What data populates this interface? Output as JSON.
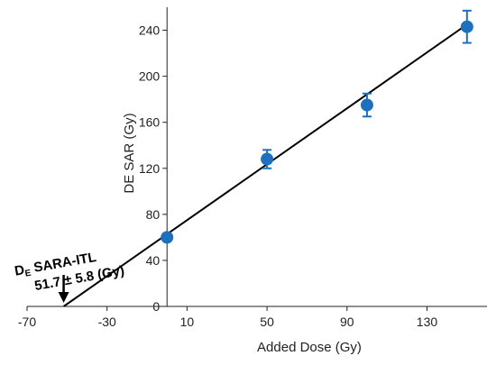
{
  "chart_data": {
    "type": "scatter",
    "title": "",
    "xlabel": "Added Dose (Gy)",
    "ylabel": "DE SAR (Gy)",
    "xlim": [
      -70,
      160
    ],
    "ylim": [
      0,
      260
    ],
    "xticks": [
      -70,
      -30,
      10,
      50,
      90,
      130
    ],
    "yticks": [
      0,
      40,
      80,
      120,
      160,
      200,
      240
    ],
    "grid": false,
    "legend": "none",
    "series": [
      {
        "x": [
          0,
          50,
          100,
          150
        ],
        "y": [
          60,
          128,
          175,
          243
        ],
        "error": [
          0,
          8,
          10,
          14
        ],
        "color": "#1f6fbf"
      }
    ],
    "fit_line": {
      "x": [
        -51.7,
        150
      ],
      "y": [
        0,
        245
      ],
      "color": "#000000"
    },
    "annotation": {
      "line1_main": "D",
      "line1_sub": "E",
      "line1_rest": " SARA-ITL",
      "line2": "51.7 ± 5.8 (Gy)",
      "arrow_target_x": -51.7
    }
  }
}
